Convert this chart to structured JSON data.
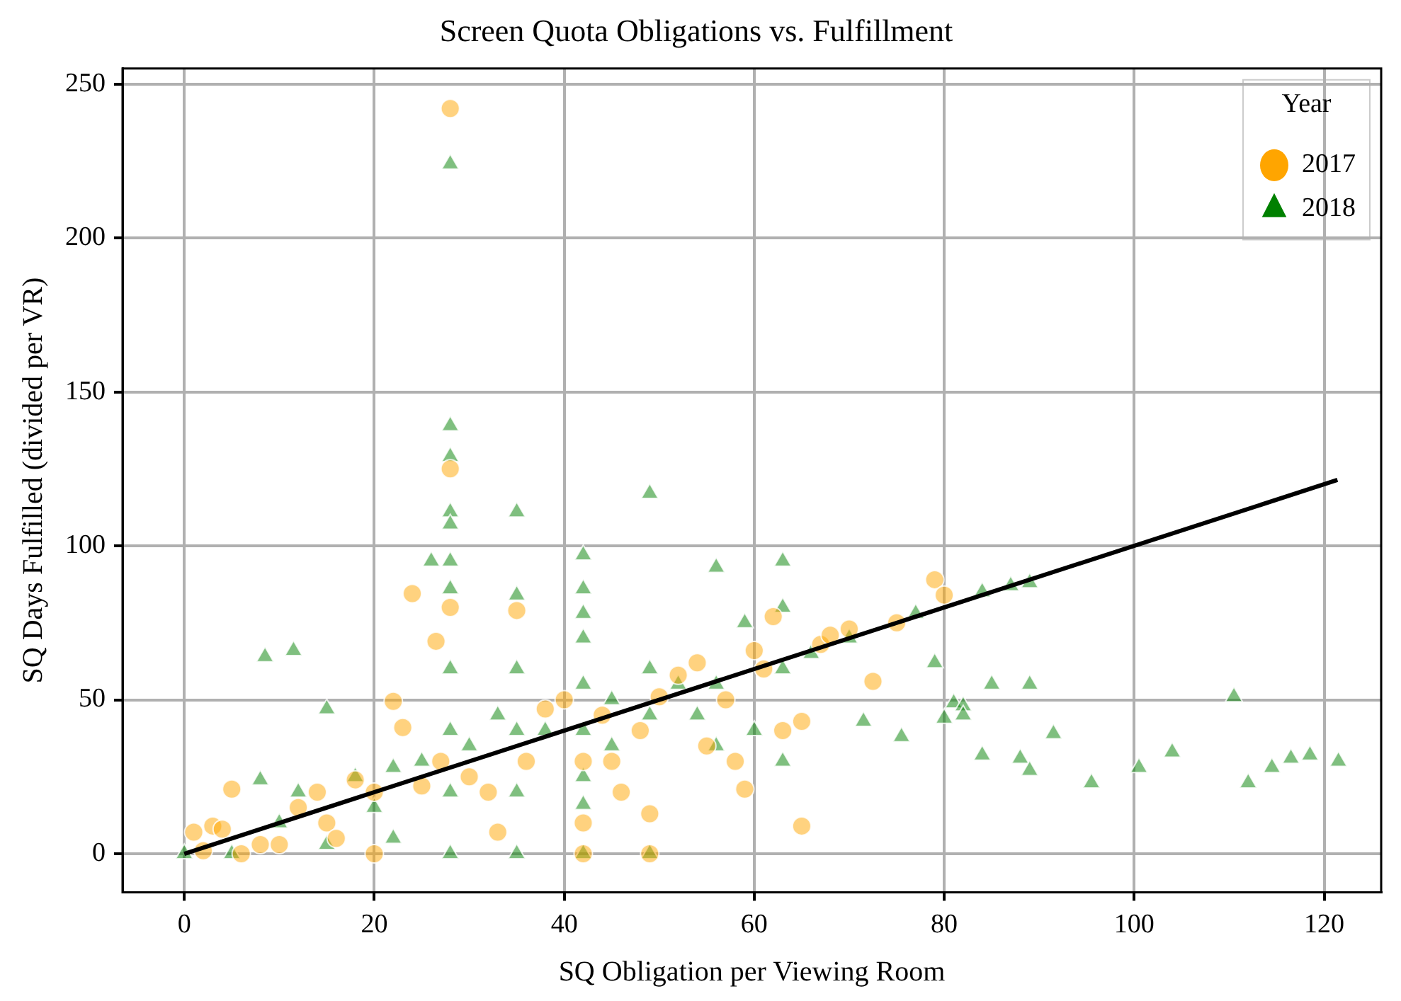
{
  "chart_data": {
    "type": "scatter",
    "title": "Screen Quota Obligations vs. Fulfillment",
    "xlabel": "SQ Obligation per Viewing Room",
    "ylabel": "SQ Days Fulfilled (divided per VR)",
    "legend_title": "Year",
    "legend": "top right",
    "grid": true,
    "xlim": [
      -6.5,
      126
    ],
    "xticks": [
      0,
      20,
      40,
      60,
      80,
      100,
      120
    ],
    "ylim": [
      -12.5,
      255
    ],
    "yticks": [
      0,
      50,
      100,
      150,
      200,
      250
    ],
    "series": [
      {
        "name": "2017",
        "color": "#ffa500",
        "marker": "circle",
        "x": [
          28,
          28,
          35,
          26.5,
          24,
          28,
          22,
          23,
          5,
          3,
          4,
          1,
          2,
          6,
          10,
          15,
          18,
          20,
          25,
          30,
          32,
          33,
          36,
          38,
          40,
          42,
          42,
          42,
          45,
          48,
          49,
          49,
          50,
          52,
          55,
          58,
          59,
          60,
          62,
          65,
          65,
          67,
          70,
          72.5,
          75,
          79,
          80,
          12,
          16,
          20,
          8,
          14,
          27,
          44,
          46,
          54,
          57,
          63,
          68,
          61
        ],
        "values": [
          242,
          125,
          79,
          69,
          84.5,
          80,
          49.5,
          41,
          21,
          9,
          8,
          7,
          1,
          0,
          3,
          10,
          24,
          20,
          22,
          25,
          20,
          7,
          30,
          47,
          50,
          30,
          10,
          0,
          30,
          40,
          0,
          13,
          51,
          58,
          35,
          30,
          21,
          66,
          77,
          9,
          43,
          68,
          73,
          56,
          75,
          89,
          84,
          15,
          5,
          0,
          3,
          20,
          30,
          45,
          20,
          62,
          50,
          40,
          71,
          60
        ]
      },
      {
        "name": "2018",
        "color": "#008000",
        "marker": "triangle",
        "x": [
          28,
          28,
          28,
          28,
          28,
          28,
          28,
          26,
          35,
          35,
          49,
          42,
          42,
          42,
          42,
          63,
          56,
          8.5,
          11.5,
          15,
          28,
          28,
          28,
          28,
          35,
          35,
          35,
          35,
          42,
          42,
          42,
          42,
          42,
          49,
          49,
          49,
          56,
          56,
          63,
          63,
          63,
          70,
          77,
          84,
          89,
          87,
          79,
          80,
          81,
          82,
          82,
          85,
          84,
          88,
          89,
          89,
          91.5,
          95.5,
          100.5,
          104,
          110.5,
          112,
          114.5,
          116.5,
          118.5,
          121.5,
          71.5,
          75.5,
          5,
          8,
          10,
          12,
          18,
          20,
          22,
          25,
          30,
          33,
          38,
          45,
          52,
          59,
          66,
          60,
          54,
          45,
          22,
          15,
          0
        ],
        "values": [
          224,
          139,
          129,
          111,
          107,
          95,
          86,
          95,
          111,
          84,
          117,
          97,
          86,
          78,
          70,
          95,
          93,
          64,
          66,
          47,
          60,
          40,
          20,
          0,
          60,
          40,
          20,
          0,
          55,
          40,
          25,
          16,
          0,
          60,
          45,
          0,
          55,
          35,
          80,
          60,
          30,
          70,
          78,
          85,
          88,
          87,
          62,
          44,
          49,
          48,
          45,
          55,
          32,
          31,
          55,
          27,
          39,
          23,
          28,
          33,
          51,
          23,
          28,
          31,
          32,
          30,
          43,
          38,
          0,
          24,
          10,
          20,
          25,
          15,
          28,
          30,
          35,
          45,
          40,
          50,
          55,
          75,
          65,
          40,
          45,
          35,
          5,
          3,
          0
        ]
      },
      {
        "type": "line",
        "color": "#000000",
        "marker": "none",
        "x": [
          0,
          121.4
        ],
        "values": [
          0,
          121.4
        ]
      }
    ]
  }
}
